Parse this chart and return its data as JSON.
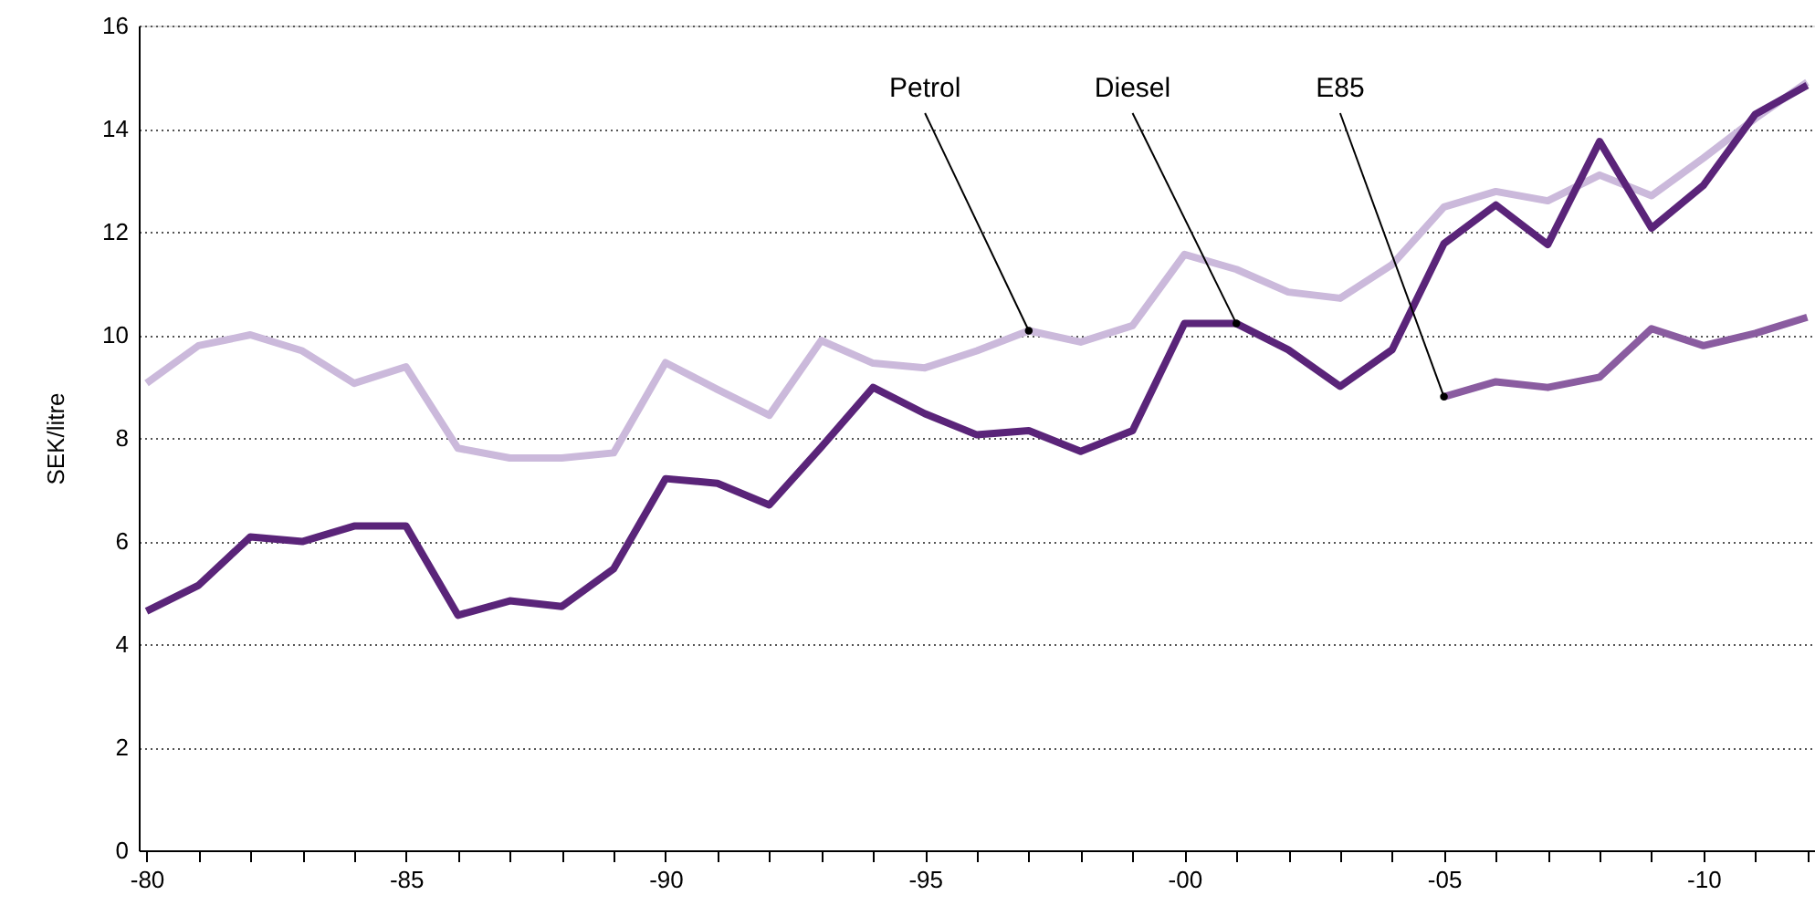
{
  "chart_data": {
    "type": "line",
    "ylabel": "SEK/litre",
    "categories": [
      "-80",
      null,
      null,
      null,
      null,
      "-85",
      null,
      null,
      null,
      null,
      "-90",
      null,
      null,
      null,
      null,
      "-95",
      null,
      null,
      null,
      null,
      "-00",
      null,
      null,
      null,
      null,
      "-05",
      null,
      null,
      null,
      null,
      "-10",
      null,
      null
    ],
    "series": [
      {
        "name": "Petrol",
        "color": "#cbb9db",
        "values": [
          9.06,
          9.79,
          10.0,
          9.69,
          9.06,
          9.38,
          7.8,
          7.61,
          7.61,
          7.71,
          9.46,
          8.94,
          8.44,
          9.89,
          9.45,
          9.36,
          9.69,
          10.08,
          9.86,
          10.18,
          11.56,
          11.27,
          10.83,
          10.71,
          11.36,
          12.48,
          12.78,
          12.6,
          13.1,
          12.7,
          13.43,
          14.2,
          14.9
        ]
      },
      {
        "name": "Diesel",
        "color": "#5a2479",
        "values": [
          4.64,
          5.14,
          6.08,
          5.99,
          6.29,
          6.29,
          4.56,
          4.84,
          4.73,
          5.46,
          7.21,
          7.12,
          6.7,
          7.82,
          8.98,
          8.47,
          8.06,
          8.14,
          7.74,
          8.14,
          10.22,
          10.22,
          9.71,
          9.0,
          9.71,
          11.77,
          12.52,
          11.75,
          13.75,
          12.07,
          12.9,
          14.28,
          14.84
        ]
      },
      {
        "name": "E85",
        "color": "#8a5ca0",
        "values": [
          null,
          null,
          null,
          null,
          null,
          null,
          null,
          null,
          null,
          null,
          null,
          null,
          null,
          null,
          null,
          null,
          null,
          null,
          null,
          null,
          null,
          null,
          null,
          null,
          null,
          8.8,
          9.09,
          8.98,
          9.18,
          10.12,
          9.79,
          10.03,
          10.34
        ]
      }
    ],
    "ylim": [
      0,
      16
    ],
    "yticks": [
      0,
      2,
      4,
      6,
      8,
      10,
      12,
      14,
      16
    ],
    "grid": "y",
    "marker": "none",
    "line_style": "solid"
  }
}
